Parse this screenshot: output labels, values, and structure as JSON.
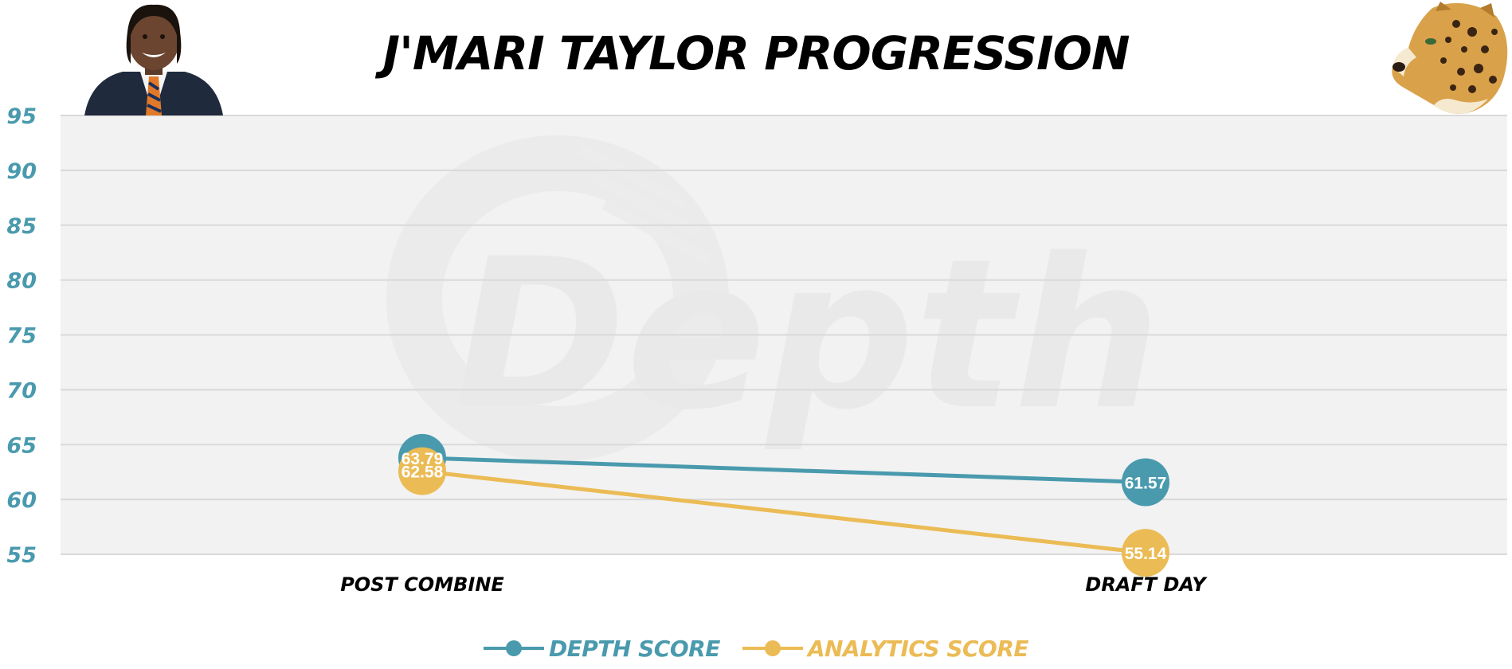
{
  "title": "J'MARI TAYLOR PROGRESSION",
  "colors": {
    "depth": "#4a9aae",
    "analytics": "#ebbb55",
    "plot_bg": "#f2f2f2",
    "grid": "#d9d9d9",
    "y_ticks": "#4a9aae"
  },
  "icons": {
    "player": "player-headshot-icon",
    "team": "jaguar-logo-icon",
    "watermark": "depth-watermark-icon"
  },
  "watermark_text": "Depth",
  "chart_data": {
    "type": "line",
    "title": "J'MARI TAYLOR PROGRESSION",
    "categories": [
      "POST COMBINE",
      "DRAFT DAY"
    ],
    "series": [
      {
        "name": "DEPTH SCORE",
        "values": [
          63.79,
          61.57
        ],
        "labels": [
          "63.79",
          "61.57"
        ],
        "color": "#4a9aae"
      },
      {
        "name": "ANALYTICS SCORE",
        "values": [
          62.58,
          55.14
        ],
        "labels": [
          "62.58",
          "55.14"
        ],
        "color": "#ebbb55"
      }
    ],
    "ylim": [
      55,
      95
    ],
    "yticks": [
      95,
      90,
      85,
      80,
      75,
      70,
      65,
      60,
      55
    ],
    "ytick_labels": [
      "95",
      "90",
      "85",
      "80",
      "75",
      "70",
      "65",
      "60",
      "55"
    ],
    "xlabel": "",
    "ylabel": "",
    "grid": true,
    "legend": "bottom-center"
  }
}
